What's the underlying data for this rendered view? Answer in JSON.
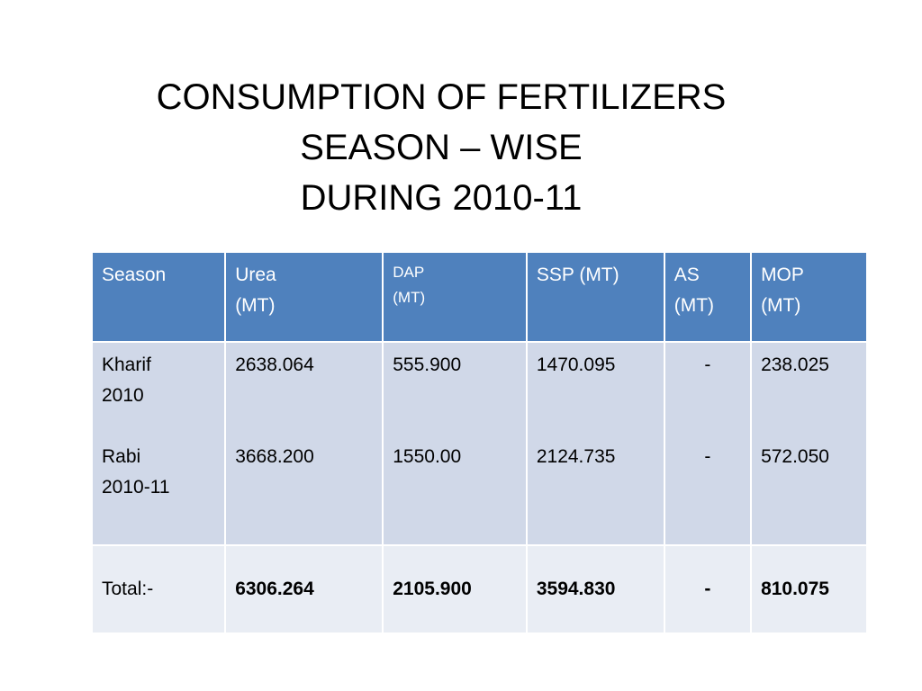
{
  "title": {
    "line1": "CONSUMPTION OF FERTILIZERS",
    "line2": "SEASON – WISE",
    "line3": "DURING 2010-11"
  },
  "table": {
    "headers": [
      {
        "line1": "Season",
        "line2": ""
      },
      {
        "line1": "Urea",
        "line2": "(MT)"
      },
      {
        "line1": "DAP",
        "line2": "(MT)"
      },
      {
        "line1": "SSP (MT)",
        "line2": ""
      },
      {
        "line1": "AS",
        "line2": "(MT)"
      },
      {
        "line1": "MOP",
        "line2": "(MT)"
      }
    ],
    "seasons": {
      "kharif_line1": "Kharif",
      "kharif_line2": "2010",
      "rabi_line1": "Rabi",
      "rabi_line2": "2010-11"
    },
    "kharif": {
      "urea": "2638.064",
      "dap": "555.900",
      "ssp": "1470.095",
      "as": "-",
      "mop": "238.025"
    },
    "rabi": {
      "urea": "3668.200",
      "dap": "1550.00",
      "ssp": "2124.735",
      "as": "-",
      "mop": "572.050"
    },
    "total": {
      "label": "Total:-",
      "urea": "6306.264",
      "dap": "2105.900",
      "ssp": "3594.830",
      "as": "-",
      "mop": "810.075"
    }
  }
}
